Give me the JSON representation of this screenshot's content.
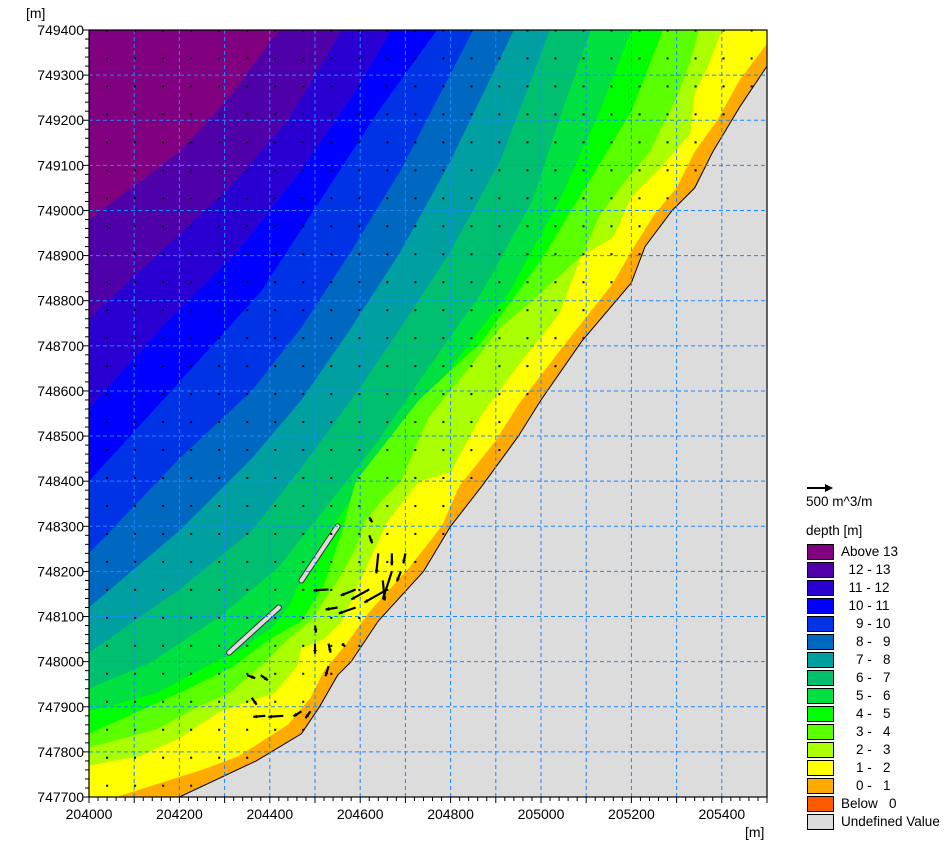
{
  "chart_data": {
    "type": "contour",
    "title": "",
    "xlabel": "[m]",
    "ylabel": "[m]",
    "xlim": [
      204000,
      205500
    ],
    "ylim": [
      747700,
      749400
    ],
    "xticks": [
      204000,
      204200,
      204400,
      204600,
      204800,
      205000,
      205200,
      205400
    ],
    "yticks": [
      749400,
      749300,
      749200,
      749100,
      749000,
      748900,
      748800,
      748700,
      748600,
      748500,
      748400,
      748300,
      748200,
      748100,
      748000,
      747900,
      747800,
      747700
    ],
    "grid": true,
    "grid_color": "#1e88ff",
    "legend": {
      "position": "right",
      "vector_scale_label": "500 m^3/m",
      "vector_scale_value": 500,
      "title": "depth [m]",
      "items": [
        {
          "label": "Above 13",
          "color": "#800080"
        },
        {
          "label": "  12 - 13",
          "color": "#5000a8"
        },
        {
          "label": "  11 - 12",
          "color": "#2a00d2"
        },
        {
          "label": "  10 - 11",
          "color": "#0000ff"
        },
        {
          "label": "    9 - 10",
          "color": "#0032e6"
        },
        {
          "label": "    8 -   9",
          "color": "#0068c0"
        },
        {
          "label": "    7 -   8",
          "color": "#00a0a0"
        },
        {
          "label": "    6 -   7",
          "color": "#00c070"
        },
        {
          "label": "    5 -   6",
          "color": "#00e040"
        },
        {
          "label": "    4 -   5",
          "color": "#00ff00"
        },
        {
          "label": "    3 -   4",
          "color": "#5aff00"
        },
        {
          "label": "    2 -   3",
          "color": "#aaff00"
        },
        {
          "label": "    1 -   2",
          "color": "#ffff00"
        },
        {
          "label": "    0 -   1",
          "color": "#ffaa00"
        },
        {
          "label": "Below   0",
          "color": "#ff5a00"
        },
        {
          "label": "Undefined Value",
          "color": "#dcdcdc"
        }
      ]
    },
    "contours": [
      {
        "level": 13,
        "points": [
          [
            204000,
            748980
          ],
          [
            204200,
            749130
          ],
          [
            204310,
            749250
          ],
          [
            204420,
            749400
          ]
        ]
      },
      {
        "level": 12,
        "points": [
          [
            204000,
            748760
          ],
          [
            204160,
            748910
          ],
          [
            204310,
            749050
          ],
          [
            204440,
            749200
          ],
          [
            204560,
            749400
          ]
        ]
      },
      {
        "level": 11,
        "points": [
          [
            204000,
            748560
          ],
          [
            204160,
            748740
          ],
          [
            204330,
            748910
          ],
          [
            204470,
            749090
          ],
          [
            204580,
            749250
          ],
          [
            204670,
            749400
          ]
        ]
      },
      {
        "level": 10,
        "points": [
          [
            204000,
            748400
          ],
          [
            204200,
            748620
          ],
          [
            204380,
            748820
          ],
          [
            204510,
            749020
          ],
          [
            204640,
            749220
          ],
          [
            204770,
            749400
          ]
        ]
      },
      {
        "level": 9,
        "points": [
          [
            204000,
            748240
          ],
          [
            204200,
            748450
          ],
          [
            204360,
            748600
          ],
          [
            204470,
            748740
          ],
          [
            204580,
            748910
          ],
          [
            204690,
            749090
          ],
          [
            204850,
            749400
          ]
        ]
      },
      {
        "level": 8,
        "points": [
          [
            204000,
            748120
          ],
          [
            204200,
            748290
          ],
          [
            204360,
            748450
          ],
          [
            204470,
            748580
          ],
          [
            204580,
            748740
          ],
          [
            204690,
            748910
          ],
          [
            204800,
            749110
          ],
          [
            204940,
            749400
          ]
        ]
      },
      {
        "level": 7,
        "points": [
          [
            204000,
            748020
          ],
          [
            204200,
            748160
          ],
          [
            204360,
            748290
          ],
          [
            204470,
            748430
          ],
          [
            204580,
            748580
          ],
          [
            204690,
            748740
          ],
          [
            204800,
            748910
          ],
          [
            204910,
            749110
          ],
          [
            205020,
            749400
          ]
        ]
      },
      {
        "level": 6,
        "points": [
          [
            204000,
            747940
          ],
          [
            204140,
            748000
          ],
          [
            204290,
            748100
          ],
          [
            204420,
            748210
          ],
          [
            204530,
            748350
          ],
          [
            204640,
            748490
          ],
          [
            204750,
            748650
          ],
          [
            204870,
            748820
          ],
          [
            204980,
            749020
          ],
          [
            205040,
            749200
          ],
          [
            205110,
            749400
          ]
        ]
      },
      {
        "level": 5,
        "points": [
          [
            204000,
            747890
          ],
          [
            204150,
            747930
          ],
          [
            204260,
            747990
          ],
          [
            204340,
            748030
          ],
          [
            204410,
            748080
          ],
          [
            204440,
            748120
          ],
          [
            204470,
            748180
          ],
          [
            204520,
            748270
          ],
          [
            204580,
            748360
          ],
          [
            204670,
            748490
          ],
          [
            204800,
            748650
          ],
          [
            204930,
            748820
          ],
          [
            205040,
            749020
          ],
          [
            205130,
            749220
          ],
          [
            205200,
            749400
          ]
        ]
      },
      {
        "level": 4,
        "points": [
          [
            204000,
            747840
          ],
          [
            204110,
            747890
          ],
          [
            204220,
            747940
          ],
          [
            204320,
            747990
          ],
          [
            204400,
            748050
          ],
          [
            204470,
            748090
          ],
          [
            204520,
            748170
          ],
          [
            204560,
            748290
          ],
          [
            204590,
            748400
          ],
          [
            204730,
            748580
          ],
          [
            204870,
            748710
          ],
          [
            205000,
            748890
          ],
          [
            205110,
            749070
          ],
          [
            205200,
            749220
          ],
          [
            205270,
            749400
          ]
        ]
      },
      {
        "level": 3,
        "points": [
          [
            204000,
            747810
          ],
          [
            204150,
            747850
          ],
          [
            204240,
            747900
          ],
          [
            204310,
            747930
          ],
          [
            204380,
            747990
          ],
          [
            204440,
            748050
          ],
          [
            204490,
            748090
          ],
          [
            204550,
            748180
          ],
          [
            204590,
            748250
          ],
          [
            204610,
            748310
          ],
          [
            204650,
            748360
          ],
          [
            204690,
            748400
          ],
          [
            204750,
            748540
          ],
          [
            204840,
            748650
          ],
          [
            204910,
            748740
          ],
          [
            204980,
            748800
          ],
          [
            205090,
            748900
          ],
          [
            205130,
            748990
          ],
          [
            205190,
            749070
          ],
          [
            205240,
            749130
          ],
          [
            205300,
            749250
          ],
          [
            205330,
            749330
          ],
          [
            205350,
            749400
          ]
        ]
      },
      {
        "level": 2,
        "points": [
          [
            204000,
            747770
          ],
          [
            204110,
            747790
          ],
          [
            204200,
            747830
          ],
          [
            204290,
            747890
          ],
          [
            204410,
            747930
          ],
          [
            204460,
            747990
          ],
          [
            204470,
            748030
          ],
          [
            204520,
            748050
          ],
          [
            204560,
            748090
          ],
          [
            204600,
            748180
          ],
          [
            204660,
            748310
          ],
          [
            204730,
            748400
          ],
          [
            204800,
            748420
          ],
          [
            204870,
            748550
          ],
          [
            204960,
            748670
          ],
          [
            205040,
            748770
          ],
          [
            205090,
            748900
          ],
          [
            205160,
            748940
          ],
          [
            205200,
            749030
          ],
          [
            205260,
            749090
          ],
          [
            205330,
            749170
          ],
          [
            205340,
            749260
          ],
          [
            205370,
            749320
          ],
          [
            205400,
            749400
          ]
        ]
      },
      {
        "level": 1,
        "points": [
          [
            204060,
            747700
          ],
          [
            204250,
            747760
          ],
          [
            204330,
            747790
          ],
          [
            204440,
            747860
          ],
          [
            204490,
            747920
          ],
          [
            204520,
            747980
          ],
          [
            204570,
            748040
          ],
          [
            204620,
            748110
          ],
          [
            204710,
            748210
          ],
          [
            204780,
            748300
          ],
          [
            204820,
            748390
          ],
          [
            204900,
            748490
          ],
          [
            204950,
            748570
          ],
          [
            205050,
            748700
          ],
          [
            205160,
            748840
          ],
          [
            205200,
            748910
          ],
          [
            205250,
            748990
          ],
          [
            205300,
            749050
          ],
          [
            205340,
            749130
          ],
          [
            205390,
            749200
          ],
          [
            205440,
            749290
          ],
          [
            205500,
            749370
          ]
        ]
      }
    ],
    "land": {
      "color": "#dcdcdc",
      "coastline": [
        [
          204200,
          747700
        ],
        [
          204370,
          747780
        ],
        [
          204470,
          747840
        ],
        [
          204510,
          747900
        ],
        [
          204550,
          747970
        ],
        [
          204580,
          748000
        ],
        [
          204640,
          748090
        ],
        [
          204740,
          748200
        ],
        [
          204800,
          748300
        ],
        [
          204870,
          748390
        ],
        [
          204950,
          748500
        ],
        [
          205000,
          748580
        ],
        [
          205090,
          748710
        ],
        [
          205200,
          748840
        ],
        [
          205230,
          748920
        ],
        [
          205290,
          749000
        ],
        [
          205340,
          749050
        ],
        [
          205380,
          749130
        ],
        [
          205440,
          749230
        ],
        [
          205500,
          749320
        ]
      ]
    },
    "structures": [
      [
        [
          204310,
          748020
        ],
        [
          204420,
          748120
        ]
      ],
      [
        [
          204470,
          748180
        ],
        [
          204550,
          748300
        ]
      ]
    ],
    "vectors": [
      {
        "x": 204640,
        "y": 748240,
        "qx": -40,
        "qy": -400
      },
      {
        "x": 204670,
        "y": 748240,
        "qx": 0,
        "qy": -240
      },
      {
        "x": 204700,
        "y": 748240,
        "qx": -40,
        "qy": -200
      },
      {
        "x": 204670,
        "y": 748200,
        "qx": -180,
        "qy": -560
      },
      {
        "x": 204650,
        "y": 748180,
        "qx": 40,
        "qy": -400
      },
      {
        "x": 204660,
        "y": 748160,
        "qx": -460,
        "qy": -260
      },
      {
        "x": 204620,
        "y": 748160,
        "qx": -360,
        "qy": -200
      },
      {
        "x": 204590,
        "y": 748160,
        "qx": -300,
        "qy": -120
      },
      {
        "x": 204590,
        "y": 748120,
        "qx": -340,
        "qy": -120
      },
      {
        "x": 204550,
        "y": 748120,
        "qx": -240,
        "qy": -40
      },
      {
        "x": 204530,
        "y": 748160,
        "qx": -300,
        "qy": -20
      },
      {
        "x": 204690,
        "y": 748200,
        "qx": -80,
        "qy": -200
      },
      {
        "x": 204530,
        "y": 747990,
        "qx": -60,
        "qy": -200
      },
      {
        "x": 204470,
        "y": 747890,
        "qx": -160,
        "qy": -100
      },
      {
        "x": 204430,
        "y": 747880,
        "qx": -300,
        "qy": -20
      },
      {
        "x": 204390,
        "y": 747880,
        "qx": -240,
        "qy": -20
      },
      {
        "x": 204490,
        "y": 747890,
        "qx": -100,
        "qy": -140
      },
      {
        "x": 204380,
        "y": 747970,
        "qx": 140,
        "qy": -100
      },
      {
        "x": 204350,
        "y": 747970,
        "qx": 160,
        "qy": -60
      },
      {
        "x": 204500,
        "y": 748040,
        "qx": 0,
        "qy": -200
      },
      {
        "x": 204530,
        "y": 748040,
        "qx": 40,
        "qy": -180
      },
      {
        "x": 204560,
        "y": 748040,
        "qx": 60,
        "qy": -60
      },
      {
        "x": 204500,
        "y": 748080,
        "qx": 20,
        "qy": -140
      },
      {
        "x": 204620,
        "y": 748320,
        "qx": 60,
        "qy": -100
      },
      {
        "x": 204620,
        "y": 748280,
        "qx": 60,
        "qy": -160
      },
      {
        "x": 204360,
        "y": 747920,
        "qx": 100,
        "qy": -140
      }
    ]
  }
}
